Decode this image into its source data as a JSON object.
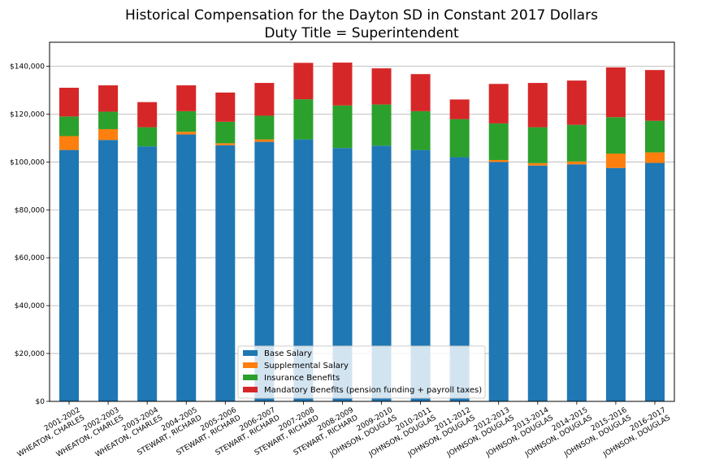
{
  "chart_data": {
    "type": "bar",
    "stacked": true,
    "title": "Historical Compensation for the Dayton SD in Constant 2017 Dollars",
    "subtitle": "Duty Title = Superintendent",
    "xlabel": "",
    "ylabel": "",
    "ylim": [
      0,
      150000
    ],
    "yticks": [
      0,
      20000,
      40000,
      60000,
      80000,
      100000,
      120000,
      140000
    ],
    "ytick_labels": [
      "$0",
      "$20,000",
      "$40,000",
      "$60,000",
      "$80,000",
      "$100,000",
      "$120,000",
      "$140,000"
    ],
    "grid": "horizontal",
    "legend_position": "bottom-center",
    "categories": [
      [
        "2001-2002",
        "WHEATON, CHARLES"
      ],
      [
        "2002-2003",
        "WHEATON, CHARLES"
      ],
      [
        "2003-2004",
        "WHEATON, CHARLES"
      ],
      [
        "2004-2005",
        "STEWART, RICHARD"
      ],
      [
        "2005-2006",
        "STEWART, RICHARD"
      ],
      [
        "2006-2007",
        "STEWART, RICHARD"
      ],
      [
        "2007-2008",
        "STEWART, RICHARD"
      ],
      [
        "2008-2009",
        "STEWART, RICHARD"
      ],
      [
        "2009-2010",
        "JOHNSON, DOUGLAS"
      ],
      [
        "2010-2011",
        "JOHNSON, DOUGLAS"
      ],
      [
        "2011-2012",
        "JOHNSON, DOUGLAS"
      ],
      [
        "2012-2013",
        "JOHNSON, DOUGLAS"
      ],
      [
        "2013-2014",
        "JOHNSON, DOUGLAS"
      ],
      [
        "2014-2015",
        "JOHNSON, DOUGLAS"
      ],
      [
        "2015-2016",
        "JOHNSON, DOUGLAS"
      ],
      [
        "2016-2017",
        "JOHNSON, DOUGLAS"
      ]
    ],
    "series": [
      {
        "name": "Base Salary",
        "color": "#1f77b4",
        "values": [
          105000,
          109200,
          106500,
          111500,
          107000,
          108400,
          109400,
          105800,
          106800,
          105000,
          102000,
          100000,
          98500,
          99000,
          97500,
          99600
        ]
      },
      {
        "name": "Supplemental Salary",
        "color": "#ff7f0e",
        "values": [
          5800,
          4500,
          0,
          1100,
          800,
          1000,
          0,
          0,
          0,
          0,
          0,
          800,
          1000,
          1200,
          6000,
          4400
        ]
      },
      {
        "name": "Insurance Benefits",
        "color": "#2ca02c",
        "values": [
          8200,
          7300,
          8000,
          8600,
          9000,
          9900,
          16800,
          17800,
          17200,
          16200,
          15900,
          15300,
          15000,
          15300,
          15200,
          13200
        ]
      },
      {
        "name": "Mandatory Benefits (pension funding + payroll taxes)",
        "color": "#d62728",
        "values": [
          12000,
          11000,
          10500,
          10800,
          12200,
          13700,
          15200,
          17900,
          15100,
          15500,
          8200,
          16500,
          18500,
          18500,
          20800,
          21200
        ]
      }
    ]
  }
}
